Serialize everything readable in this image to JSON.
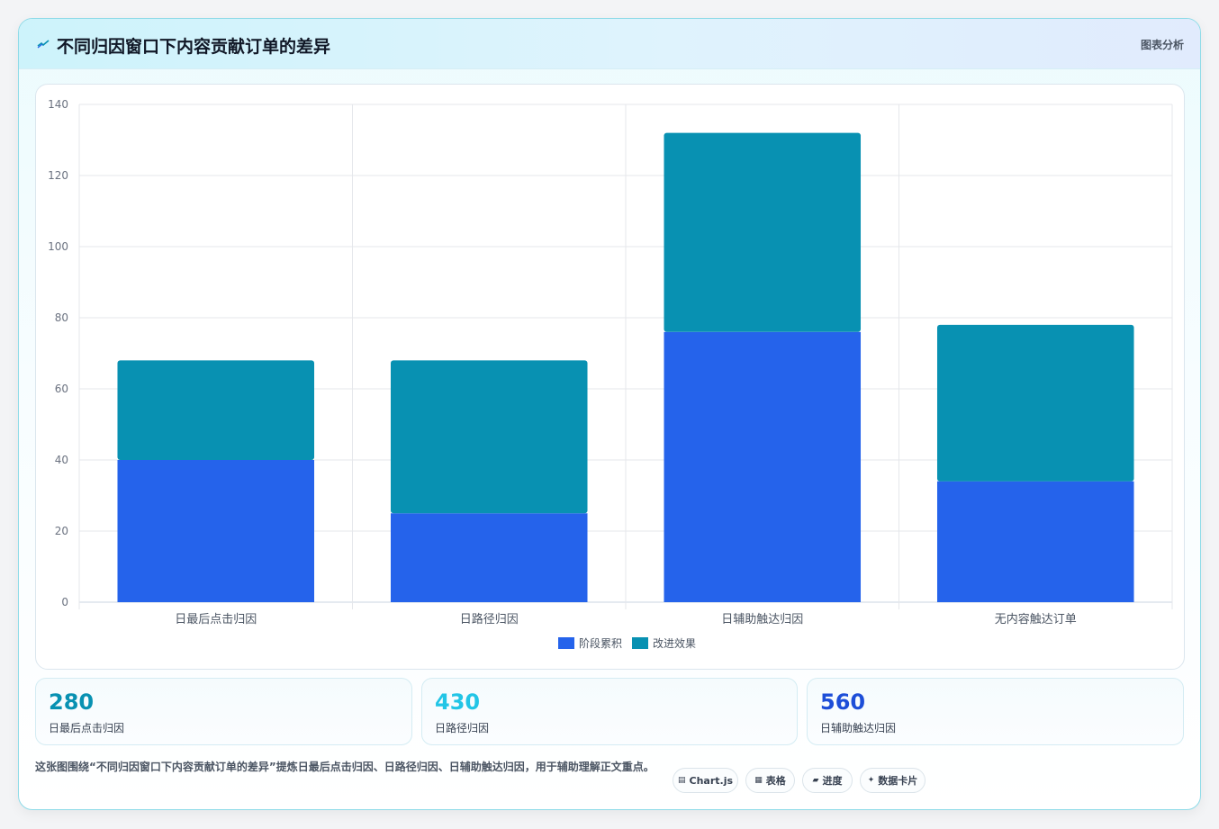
{
  "header": {
    "title": "不同归因窗口下内容贡献订单的差异",
    "tag": "图表分析",
    "icon": "pulse-line-icon"
  },
  "chart_data": {
    "type": "bar",
    "stacked": true,
    "categories": [
      "日最后点击归因",
      "日路径归因",
      "日辅助触达归因",
      "无内容触达订单"
    ],
    "series": [
      {
        "name": "阶段累积",
        "values": [
          40,
          25,
          76,
          34
        ],
        "color": "#2563eb"
      },
      {
        "name": "改进效果",
        "values": [
          28,
          43,
          56,
          44
        ],
        "color": "#0891b2"
      }
    ],
    "ylim": [
      0,
      140
    ],
    "yticks": [
      0,
      20,
      40,
      60,
      80,
      100,
      120,
      140
    ],
    "grid": true,
    "legend": "bottom"
  },
  "stats": [
    {
      "value": "280",
      "label": "日最后点击归因",
      "color": "#0891b2"
    },
    {
      "value": "430",
      "label": "日路径归因",
      "color": "#22c5e6"
    },
    {
      "value": "560",
      "label": "日辅助触达归因",
      "color": "#1d4ed8"
    }
  ],
  "description": "这张图围绕“不同归因窗口下内容贡献订单的差异”提炼日最后点击归因、日路径归因、日辅助触达归因，用于辅助理解正文重点。",
  "tags": [
    {
      "label": "Chart.js",
      "icon": "chart-icon",
      "glyph": "▤"
    },
    {
      "label": "表格",
      "icon": "table-icon",
      "glyph": "▦"
    },
    {
      "label": "进度",
      "icon": "progress-icon",
      "glyph": "▰"
    },
    {
      "label": "数据卡片",
      "icon": "sparkle-icon",
      "glyph": "✦"
    }
  ]
}
